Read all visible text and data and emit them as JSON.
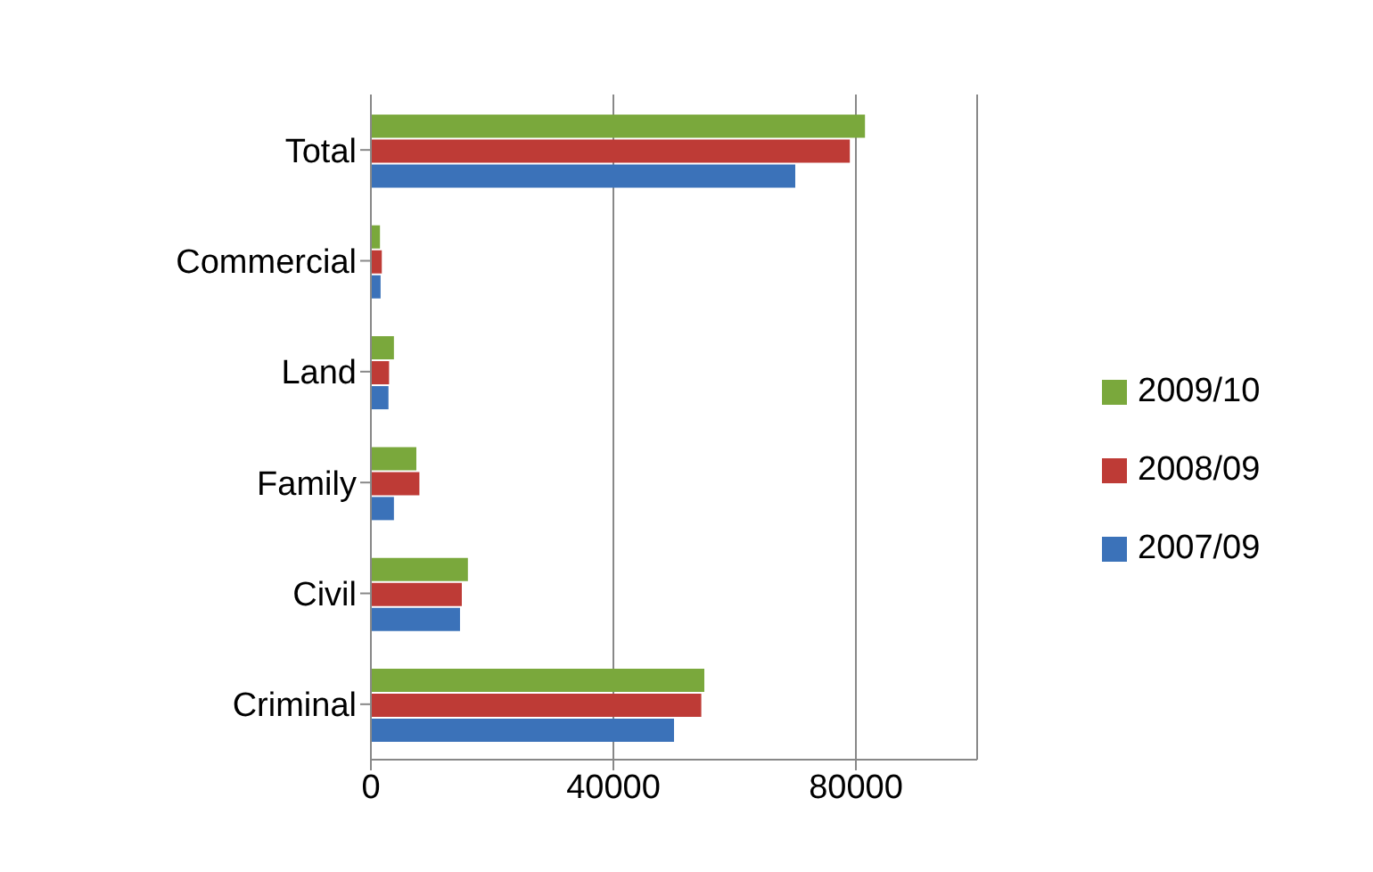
{
  "chart_data": {
    "type": "bar",
    "orientation": "horizontal",
    "categories": [
      "Total",
      "Commercial",
      "Land",
      "Family",
      "Civil",
      "Criminal"
    ],
    "series": [
      {
        "name": "2009/10",
        "color": "#7aa83c",
        "values": [
          81500,
          1500,
          3800,
          7500,
          16000,
          55000
        ]
      },
      {
        "name": "2008/09",
        "color": "#be3b36",
        "values": [
          79000,
          1800,
          3000,
          8000,
          15000,
          54500
        ]
      },
      {
        "name": "2007/09",
        "color": "#3b72b9",
        "values": [
          70000,
          1600,
          2900,
          3800,
          14700,
          50000
        ]
      }
    ],
    "xlim": [
      0,
      100000
    ],
    "xticks": [
      0,
      40000,
      80000
    ],
    "grid": "x",
    "legend": "right"
  }
}
